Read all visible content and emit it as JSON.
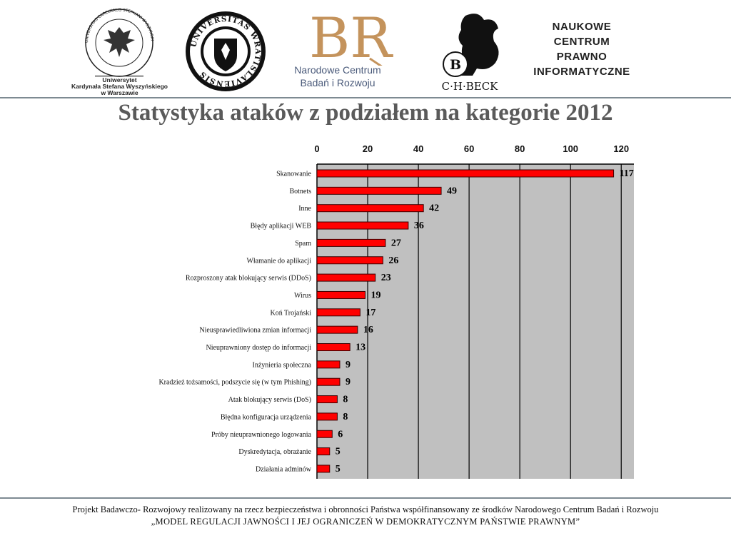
{
  "logos": {
    "uksw": {
      "ring_text": "UNIVERSITAS CARDINALIS STEPHANI WYSZYNSKI VARSOVIAE",
      "caption_line1": "Uniwersytet",
      "caption_line2": "Kardynała Stefana Wyszyńskiego",
      "caption_line3": "w Warszawie"
    },
    "uwr": {
      "ring_text": "UNIVERSITAS WRATISLAVIENSIS"
    },
    "ncbr": {
      "monogram": "BR",
      "line1": "Narodowe Centrum",
      "line2": "Badań i Rozwoju"
    },
    "chbeck": {
      "letter": "B",
      "name": "C·H·BECK"
    },
    "ncpi": {
      "line1": "NAUKOWE",
      "line2": "CENTRUM",
      "line3": "PRAWNO",
      "line4": "INFORMATYCZNE"
    }
  },
  "colors": {
    "bar": "#ff0000",
    "bar_stroke": "#3a0000",
    "plot_bg": "#c0c0c0",
    "title": "#5a5a5a"
  },
  "chart_data": {
    "type": "bar",
    "orientation": "horizontal",
    "title": "Statystyka ataków z podziałem na kategorie 2012",
    "xlim": [
      0,
      125
    ],
    "x_ticks": [
      "0",
      "20",
      "40",
      "60",
      "80",
      "100",
      "120"
    ],
    "axis_position": "top",
    "grid": true,
    "categories": [
      "Skanowanie",
      "Botnets",
      "Inne",
      "Błędy aplikacji WEB",
      "Spam",
      "Włamanie do aplikacji",
      "Rozproszony atak blokujący serwis (DDoS)",
      "Wirus",
      "Koń Trojański",
      "Nieusprawiedliwiona zmian informacji",
      "Nieuprawniony dostęp do informacji",
      "Inżynieria społeczna",
      "Kradzież tożsamości, podszycie się (w tym Phishing)",
      "Atak blokujący serwis (DoS)",
      "Błędna konfiguracja urządzenia",
      "Próby nieuprawnionego logowania",
      "Dyskredytacja, obrażanie",
      "Działania adminów"
    ],
    "values": [
      117,
      49,
      42,
      36,
      27,
      26,
      23,
      19,
      17,
      16,
      13,
      9,
      9,
      8,
      8,
      6,
      5,
      5
    ],
    "data_labels": [
      "117",
      "49",
      "42",
      "36",
      "27",
      "26",
      "23",
      "19",
      "17",
      "16",
      "13",
      "9",
      "9",
      "8",
      "8",
      "6",
      "5",
      "5"
    ]
  },
  "footer": {
    "line1": "Projekt Badawczo- Rozwojowy realizowany na rzecz bezpieczeństwa i obronności Państwa współfinansowany ze środków Narodowego Centrum Badań i Rozwoju",
    "line2": "„MODEL REGULACJI JAWNOŚCI I JEJ OGRANICZEŃ W DEMOKRATYCZNYM PAŃSTWIE PRAWNYM”"
  }
}
